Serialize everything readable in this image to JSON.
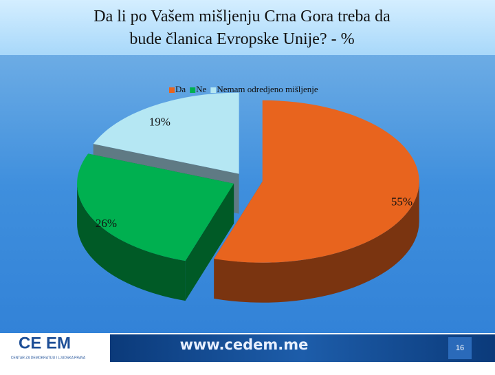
{
  "chart_data": {
    "type": "pie",
    "title": "Da li po Vašem mišljenju Crna Gora treba da bude članica Evropske Unije? - %",
    "categories": [
      "Da",
      "Ne",
      "Nemam odredjeno mišljenje"
    ],
    "values": [
      55,
      26,
      19
    ],
    "value_labels": [
      "55%",
      "26%",
      "19%"
    ],
    "colors": [
      "#E8641E",
      "#00B050",
      "#B5E7F3"
    ],
    "side_colors": [
      "#7A3410",
      "#005A26",
      "#5F7A84"
    ],
    "legend": "top"
  },
  "footer": {
    "logo": "CE EM",
    "logo_subtitle": "CENTAR ZA DEMOKRATIJU I LJUDSKA PRAVA",
    "url": "www.cedem.me",
    "slide_number": "16"
  }
}
